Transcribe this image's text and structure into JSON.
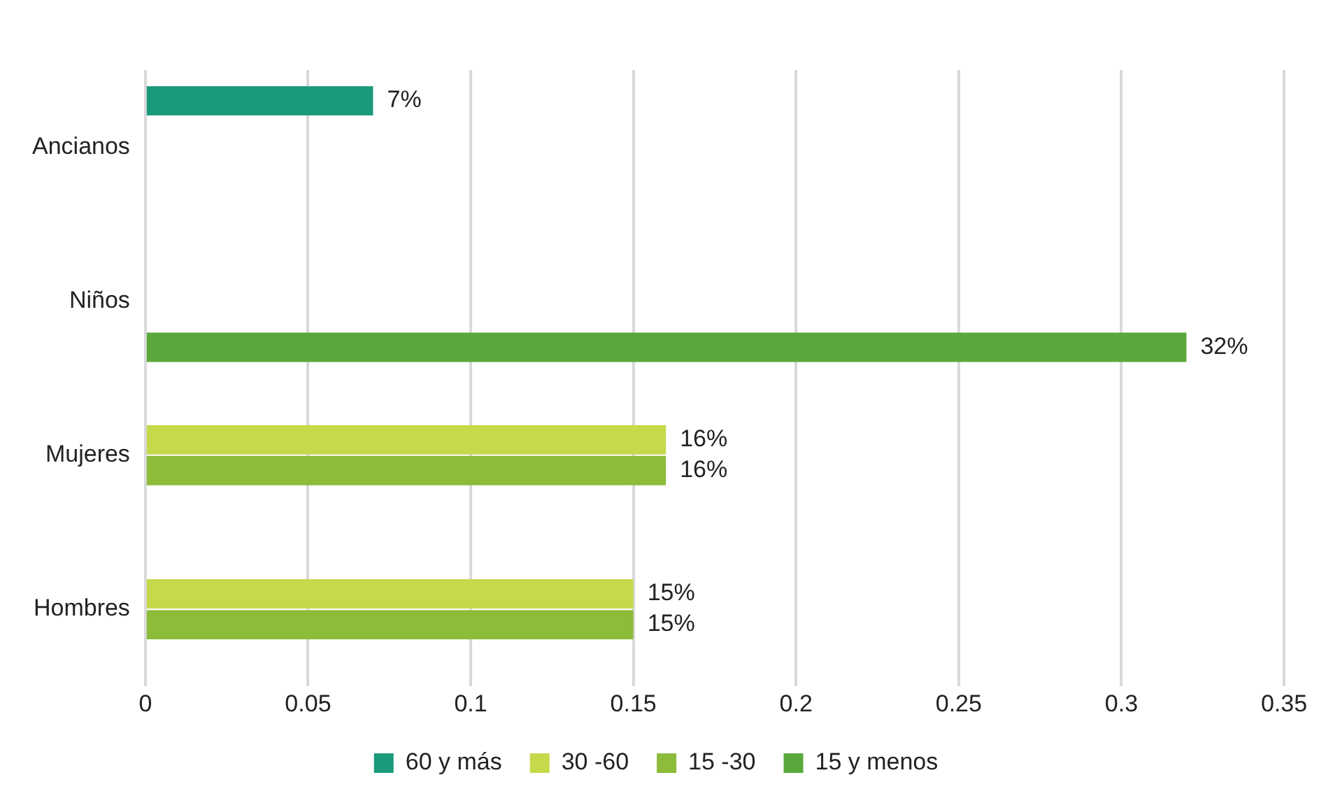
{
  "chart_data": {
    "type": "bar",
    "orientation": "horizontal",
    "categories": [
      "Ancianos",
      "Niños",
      "Mujeres",
      "Hombres"
    ],
    "series": [
      {
        "name": "60 y más",
        "color": "#1a9a7a",
        "values": [
          0.07,
          null,
          null,
          null
        ],
        "value_labels": [
          "7%",
          null,
          null,
          null
        ]
      },
      {
        "name": "30 -60",
        "color": "#c5d94a",
        "values": [
          null,
          null,
          0.16,
          0.15
        ],
        "value_labels": [
          null,
          null,
          "16%",
          "15%"
        ]
      },
      {
        "name": "15 -30",
        "color": "#8dbb3a",
        "values": [
          null,
          null,
          0.16,
          0.15
        ],
        "value_labels": [
          null,
          null,
          "16%",
          "15%"
        ]
      },
      {
        "name": "15 y menos",
        "color": "#5aa83c",
        "values": [
          null,
          0.32,
          null,
          null
        ],
        "value_labels": [
          null,
          "32%",
          null,
          null
        ]
      }
    ],
    "xlim": [
      0,
      0.35
    ],
    "xticks": [
      0,
      0.05,
      0.1,
      0.15,
      0.2,
      0.25,
      0.3,
      0.35
    ],
    "grid": "x",
    "legend": "bottom"
  }
}
